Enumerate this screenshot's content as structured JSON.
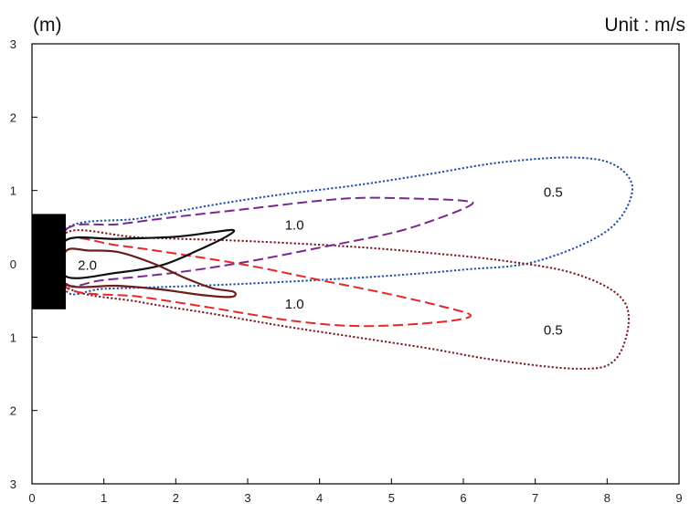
{
  "chart_data": {
    "type": "line",
    "title": "",
    "xlabel": "",
    "ylabel": "(m)",
    "unit_label": "Unit : m/s",
    "xlim": [
      0,
      9
    ],
    "ylim": [
      -3,
      3
    ],
    "x_ticks": [
      0,
      1,
      2,
      3,
      4,
      5,
      6,
      7,
      8,
      9
    ],
    "x_tick_labels": [
      "0",
      "1",
      "2",
      "3",
      "4",
      "5",
      "6",
      "7",
      "8",
      "9"
    ],
    "y_ticks": [
      3,
      2,
      1,
      0,
      -1,
      -2,
      -3
    ],
    "y_tick_labels": [
      "3",
      "2",
      "1",
      "0",
      "1",
      "2",
      "3"
    ],
    "grid": false,
    "unit_block": {
      "x_range": [
        0,
        0.47
      ],
      "y_range": [
        -0.62,
        0.68
      ],
      "color": "#000000"
    },
    "series": [
      {
        "color": "#1f4fa8",
        "dash": "dotted",
        "label": "0.5",
        "label_pos": [
          7.25,
          0.98
        ],
        "points": [
          [
            0.47,
            0.47
          ],
          [
            1.5,
            0.62
          ],
          [
            2.5,
            0.8
          ],
          [
            3.5,
            0.95
          ],
          [
            4.5,
            1.07
          ],
          [
            5.5,
            1.22
          ],
          [
            6.5,
            1.38
          ],
          [
            7.5,
            1.45
          ],
          [
            8.1,
            1.35
          ],
          [
            8.35,
            1.0
          ],
          [
            8.0,
            0.45
          ],
          [
            7.0,
            0.03
          ],
          [
            6.0,
            -0.08
          ],
          [
            5.0,
            -0.16
          ],
          [
            4.0,
            -0.22
          ],
          [
            3.0,
            -0.27
          ],
          [
            2.0,
            -0.31
          ],
          [
            1.0,
            -0.34
          ],
          [
            0.47,
            -0.36
          ]
        ]
      },
      {
        "color": "#7b1a1f",
        "dash": "dotted",
        "label": "0.5",
        "label_pos": [
          7.25,
          -0.9
        ],
        "points": [
          [
            0.47,
            0.42
          ],
          [
            1.5,
            0.36
          ],
          [
            3.0,
            0.31
          ],
          [
            4.5,
            0.23
          ],
          [
            5.5,
            0.15
          ],
          [
            6.5,
            0.05
          ],
          [
            7.5,
            -0.12
          ],
          [
            8.15,
            -0.42
          ],
          [
            8.3,
            -0.8
          ],
          [
            8.1,
            -1.32
          ],
          [
            7.6,
            -1.43
          ],
          [
            6.5,
            -1.32
          ],
          [
            5.5,
            -1.15
          ],
          [
            4.5,
            -1.0
          ],
          [
            3.5,
            -0.85
          ],
          [
            2.5,
            -0.68
          ],
          [
            1.5,
            -0.52
          ],
          [
            0.47,
            -0.3
          ]
        ]
      },
      {
        "color": "#7a2a8e",
        "dash": "dashed",
        "label": "1.0",
        "label_pos": [
          3.65,
          0.53
        ],
        "points": [
          [
            0.47,
            0.46
          ],
          [
            1.2,
            0.54
          ],
          [
            2.0,
            0.64
          ],
          [
            3.0,
            0.75
          ],
          [
            4.0,
            0.86
          ],
          [
            4.6,
            0.9
          ],
          [
            5.3,
            0.89
          ],
          [
            6.0,
            0.86
          ],
          [
            6.1,
            0.8
          ],
          [
            5.6,
            0.6
          ],
          [
            5.0,
            0.42
          ],
          [
            4.0,
            0.22
          ],
          [
            3.0,
            0.03
          ],
          [
            2.0,
            -0.12
          ],
          [
            1.0,
            -0.22
          ],
          [
            0.47,
            -0.26
          ]
        ]
      },
      {
        "color": "#e8272a",
        "dash": "dashed",
        "label": "1.0",
        "label_pos": [
          3.65,
          -0.55
        ],
        "points": [
          [
            0.47,
            0.32
          ],
          [
            1.2,
            0.25
          ],
          [
            2.0,
            0.14
          ],
          [
            3.0,
            -0.02
          ],
          [
            4.0,
            -0.22
          ],
          [
            5.0,
            -0.42
          ],
          [
            5.7,
            -0.58
          ],
          [
            6.1,
            -0.7
          ],
          [
            5.8,
            -0.78
          ],
          [
            5.0,
            -0.84
          ],
          [
            4.3,
            -0.84
          ],
          [
            3.5,
            -0.76
          ],
          [
            2.5,
            -0.6
          ],
          [
            1.5,
            -0.45
          ],
          [
            0.47,
            -0.32
          ]
        ]
      },
      {
        "color": "#111111",
        "dash": "solid",
        "label": "2.0",
        "label_pos": [
          0.77,
          -0.02
        ],
        "points": [
          [
            0.47,
            0.32
          ],
          [
            1.2,
            0.34
          ],
          [
            2.0,
            0.37
          ],
          [
            2.5,
            0.43
          ],
          [
            2.8,
            0.46
          ],
          [
            2.7,
            0.37
          ],
          [
            2.3,
            0.18
          ],
          [
            1.8,
            -0.02
          ],
          [
            1.2,
            -0.12
          ],
          [
            0.47,
            -0.17
          ]
        ]
      },
      {
        "color": "#6e1d1d",
        "dash": "solid",
        "label": "",
        "points": [
          [
            0.47,
            0.17
          ],
          [
            0.8,
            0.18
          ],
          [
            1.2,
            0.16
          ],
          [
            1.7,
            0.0
          ],
          [
            2.1,
            -0.18
          ],
          [
            2.5,
            -0.33
          ],
          [
            2.8,
            -0.38
          ],
          [
            2.78,
            -0.45
          ],
          [
            2.4,
            -0.43
          ],
          [
            1.8,
            -0.35
          ],
          [
            1.2,
            -0.3
          ],
          [
            0.47,
            -0.28
          ]
        ]
      }
    ]
  }
}
